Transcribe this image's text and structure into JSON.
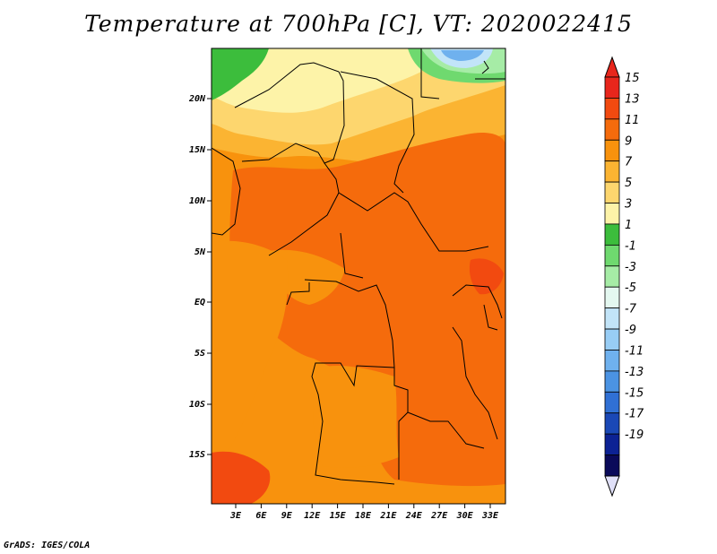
{
  "title": "Temperature at 700hPa [C], VT: 2020022415",
  "credit": "GrADS: IGES/COLA",
  "map": {
    "lat_labels": [
      "20N",
      "15N",
      "10N",
      "5N",
      "EQ",
      "5S",
      "10S",
      "15S"
    ],
    "lon_labels": [
      "3E",
      "6E",
      "9E",
      "12E",
      "15E",
      "18E",
      "21E",
      "24E",
      "27E",
      "30E",
      "33E"
    ]
  },
  "colorbar": {
    "labels": [
      "15",
      "13",
      "11",
      "9",
      "7",
      "5",
      "3",
      "1",
      "-1",
      "-3",
      "-5",
      "-7",
      "-9",
      "-11",
      "-13",
      "-15",
      "-17",
      "-19"
    ],
    "colors": [
      "#e8261c",
      "#f24a10",
      "#f56b0c",
      "#f8920d",
      "#fbb432",
      "#fdd66e",
      "#fdf3a8",
      "#3cbd3c",
      "#6fd96f",
      "#a6eca6",
      "#e4f8f0",
      "#c2e4f8",
      "#98cdf5",
      "#6fb1ee",
      "#4b93e3",
      "#3070d4",
      "#1a48b6",
      "#0c2294",
      "#0a0a5a"
    ],
    "top_triangle_color": "#e8261c",
    "bottom_triangle_color": "#e0e0f8"
  }
}
